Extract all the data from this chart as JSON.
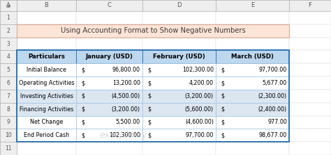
{
  "title": "Using Accounting Format to Show Negative Numbers",
  "title_bg": "#fce4d6",
  "title_border": "#d9a79a",
  "headers": [
    "Particulars",
    "January (USD)",
    "February (USD)",
    "March (USD)"
  ],
  "header_bg": "#bdd7ee",
  "header_border": "#2e75b6",
  "rows": [
    [
      "Initial Balance",
      "96,800.00",
      "102,300.00",
      "97,700.00"
    ],
    [
      "Operating Activities",
      "13,200.00",
      "4,200.00",
      "5,677.00"
    ],
    [
      "Investing Activities",
      "(4,500.00)",
      "(3,200.00)",
      "(2,300.00)"
    ],
    [
      "Financing Activities",
      "(3,200.00)",
      "(5,600.00)",
      "(2,400.00)"
    ],
    [
      "Net Change",
      "5,500.00",
      "(4,600.00)",
      "977.00"
    ],
    [
      "End Period Cash",
      "102,300.00",
      "97,700.00",
      "98,677.00"
    ]
  ],
  "row_bgs": [
    "#ffffff",
    "#ffffff",
    "#dce6f1",
    "#dce6f1",
    "#ffffff",
    "#ffffff"
  ],
  "table_border": "#2e75b6",
  "cell_border": "#9dc3e6",
  "excel_col_labels": [
    "A",
    "B",
    "C",
    "D",
    "E",
    "F"
  ],
  "excel_row_labels": [
    "1",
    "2",
    "3",
    "4",
    "5",
    "6",
    "7",
    "8",
    "9",
    "10",
    "11"
  ],
  "excel_hdr_bg": "#eeeeee",
  "excel_hdr_text": "#555555",
  "excel_bg": "#f5f5f5",
  "cell_bg": "#ffffff",
  "watermark_text": "exceldemy",
  "watermark_color": "#c0c0c0"
}
